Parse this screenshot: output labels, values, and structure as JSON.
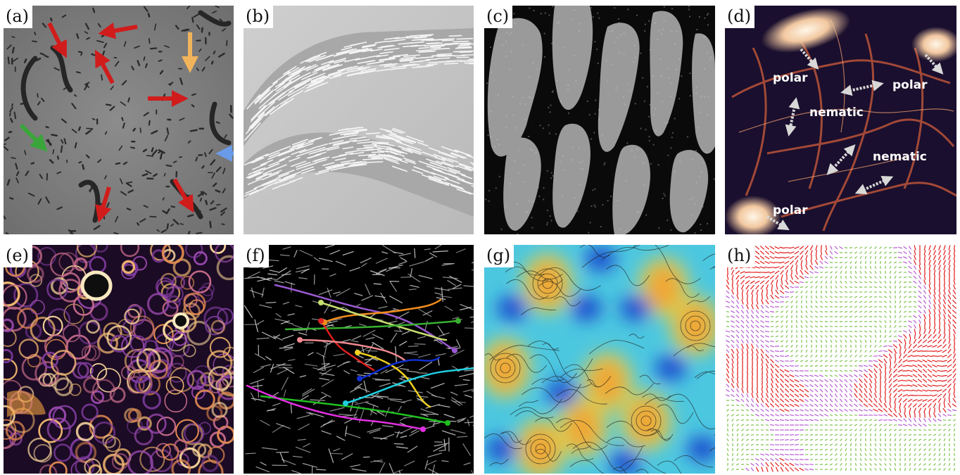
{
  "panels": [
    {
      "label": "(a)"
    },
    {
      "label": "(b)"
    },
    {
      "label": "(c)"
    },
    {
      "label": "(d)"
    },
    {
      "label": "(e)"
    },
    {
      "label": "(f)"
    },
    {
      "label": "(g)"
    },
    {
      "label": "(h)"
    }
  ],
  "annotations_d": {
    "polar_1": "polar",
    "polar_2": "polar",
    "polar_3": "polar",
    "nematic_1": "nematic",
    "nematic_2": "nematic"
  },
  "colors": {
    "arrow_red": "#d11c1c",
    "arrow_orange": "#f2b45a",
    "arrow_green": "#3aa53a",
    "arrow_blue": "#6a9be8",
    "track_colors": [
      "#9b59d0",
      "#f08c1a",
      "#c8e070",
      "#38b030",
      "#e02020",
      "#f08a90",
      "#f0d020",
      "#1030d0",
      "#20d0e0",
      "#20c020",
      "#e030e0"
    ]
  }
}
